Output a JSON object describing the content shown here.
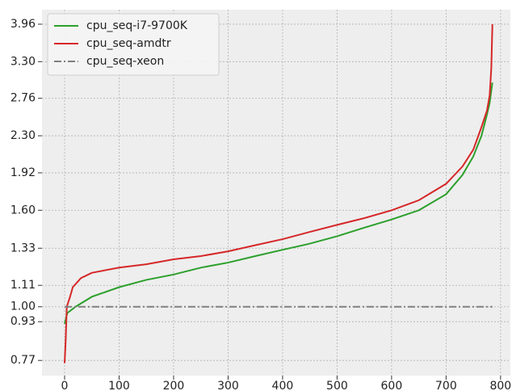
{
  "chart_data": {
    "type": "line",
    "x_scale": "linear",
    "y_scale": "log",
    "grid": true,
    "legend": "upper left",
    "xlim": [
      -41.5,
      818
    ],
    "ylim": [
      0.715,
      4.25
    ],
    "xticks": [
      0,
      100,
      200,
      300,
      400,
      500,
      600,
      700,
      800
    ],
    "yticks": [
      0.77,
      0.93,
      {
        "value": 1.0,
        "label": "1.00"
      },
      1.11,
      1.33,
      {
        "value": 1.6,
        "label": "1.60"
      },
      1.92,
      {
        "value": 2.3,
        "label": "2.30"
      },
      2.76,
      {
        "value": 3.3,
        "label": "3.30"
      },
      3.96
    ],
    "series": [
      {
        "name": "cpu_seq-i7-9700K",
        "color": "#2ca02c",
        "style": "solid",
        "x": [
          0,
          3,
          5,
          20,
          50,
          100,
          150,
          200,
          250,
          300,
          350,
          400,
          450,
          500,
          550,
          600,
          650,
          700,
          730,
          750,
          765,
          775,
          780,
          785
        ],
        "values": [
          0.92,
          0.95,
          0.97,
          1.0,
          1.05,
          1.1,
          1.14,
          1.17,
          1.21,
          1.24,
          1.28,
          1.32,
          1.36,
          1.41,
          1.47,
          1.53,
          1.6,
          1.73,
          1.9,
          2.08,
          2.3,
          2.55,
          2.7,
          2.98
        ]
      },
      {
        "name": "cpu_seq-amdtr",
        "color": "#d62728",
        "style": "solid",
        "x": [
          0,
          2,
          4,
          10,
          15,
          30,
          50,
          100,
          150,
          200,
          250,
          300,
          350,
          400,
          450,
          500,
          550,
          600,
          650,
          700,
          730,
          750,
          765,
          775,
          780,
          783,
          785
        ],
        "values": [
          0.76,
          0.85,
          1.0,
          1.05,
          1.1,
          1.15,
          1.18,
          1.21,
          1.23,
          1.26,
          1.28,
          1.31,
          1.35,
          1.39,
          1.44,
          1.49,
          1.54,
          1.6,
          1.68,
          1.82,
          1.98,
          2.15,
          2.4,
          2.6,
          2.8,
          3.2,
          3.96
        ]
      },
      {
        "name": "cpu_seq-xeon",
        "color": "#808080",
        "style": "dashdot",
        "x": [
          0,
          785
        ],
        "values": [
          1.0,
          1.0
        ]
      }
    ]
  }
}
